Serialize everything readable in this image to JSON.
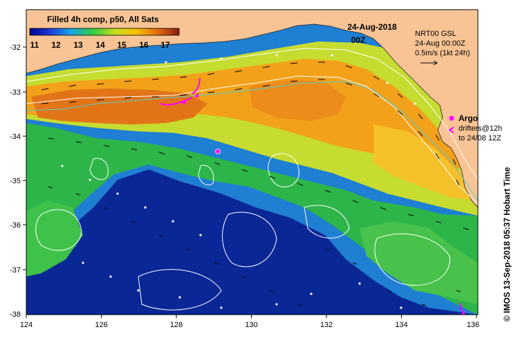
{
  "header": {
    "product_title": "Filled 4h comp, p50, All Sats",
    "date": "24-Aug-2018",
    "time": "00Z"
  },
  "colorbar": {
    "ticks": [
      "11",
      "12",
      "13",
      "14",
      "15",
      "16",
      "17"
    ],
    "min": 10.5,
    "max": 17.5
  },
  "current_info": {
    "line1": "NRT00 GSL",
    "line2": "24-Aug 00:00Z",
    "line3": "0.5m/s (1kt 24h)"
  },
  "legend": {
    "argo_label": "Argo",
    "drifters_line1": "drifters@12h",
    "drifters_line2": "to 24/08 12Z"
  },
  "credit": "© IMOS 13-Sep-2018 05:37 Hobart Time",
  "axes": {
    "x_ticks": [
      "124",
      "126",
      "128",
      "130",
      "132",
      "134",
      "136"
    ],
    "y_ticks": [
      "-32",
      "-33",
      "-34",
      "-35",
      "-36",
      "-37",
      "-38"
    ],
    "xlim": [
      124,
      136.5
    ],
    "ylim": [
      -38.1,
      -31.4
    ]
  },
  "colors": {
    "land": "#f9c495",
    "frame": "#000000",
    "argo": "#ff00ff",
    "contour": "#ffffff",
    "isobath": "#4fd0d0"
  },
  "markers": {
    "argo_floats": [
      {
        "lon": 129.35,
        "lat": -34.35
      }
    ],
    "drifters": [
      {
        "lon": 128.65,
        "lat": -32.75
      },
      {
        "lon": 128.2,
        "lat": -33.2
      },
      {
        "lon": 135.85,
        "lat": -37.85
      }
    ]
  }
}
